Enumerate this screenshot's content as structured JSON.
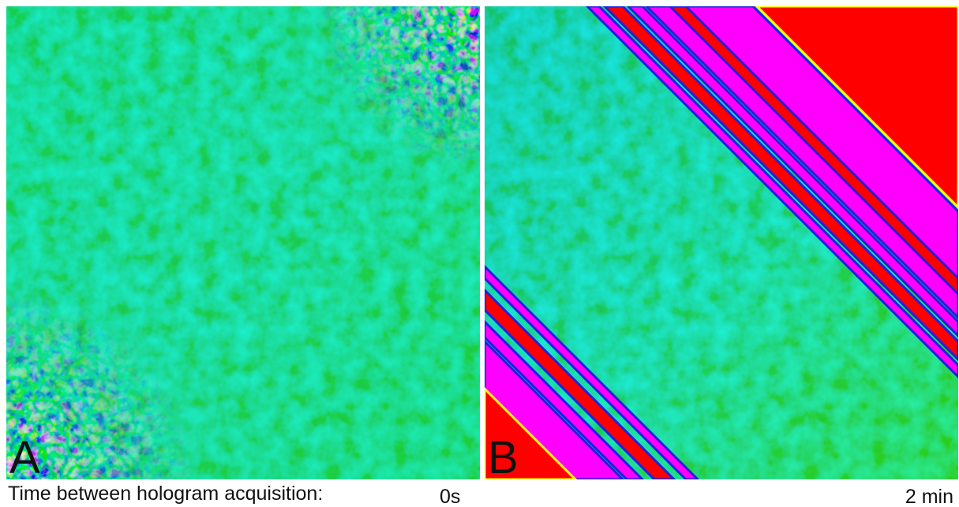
{
  "panels": [
    {
      "label": "A",
      "time": "0s"
    },
    {
      "label": "B",
      "time": "2 min"
    }
  ],
  "caption": "Time between hologram acquisition:"
}
